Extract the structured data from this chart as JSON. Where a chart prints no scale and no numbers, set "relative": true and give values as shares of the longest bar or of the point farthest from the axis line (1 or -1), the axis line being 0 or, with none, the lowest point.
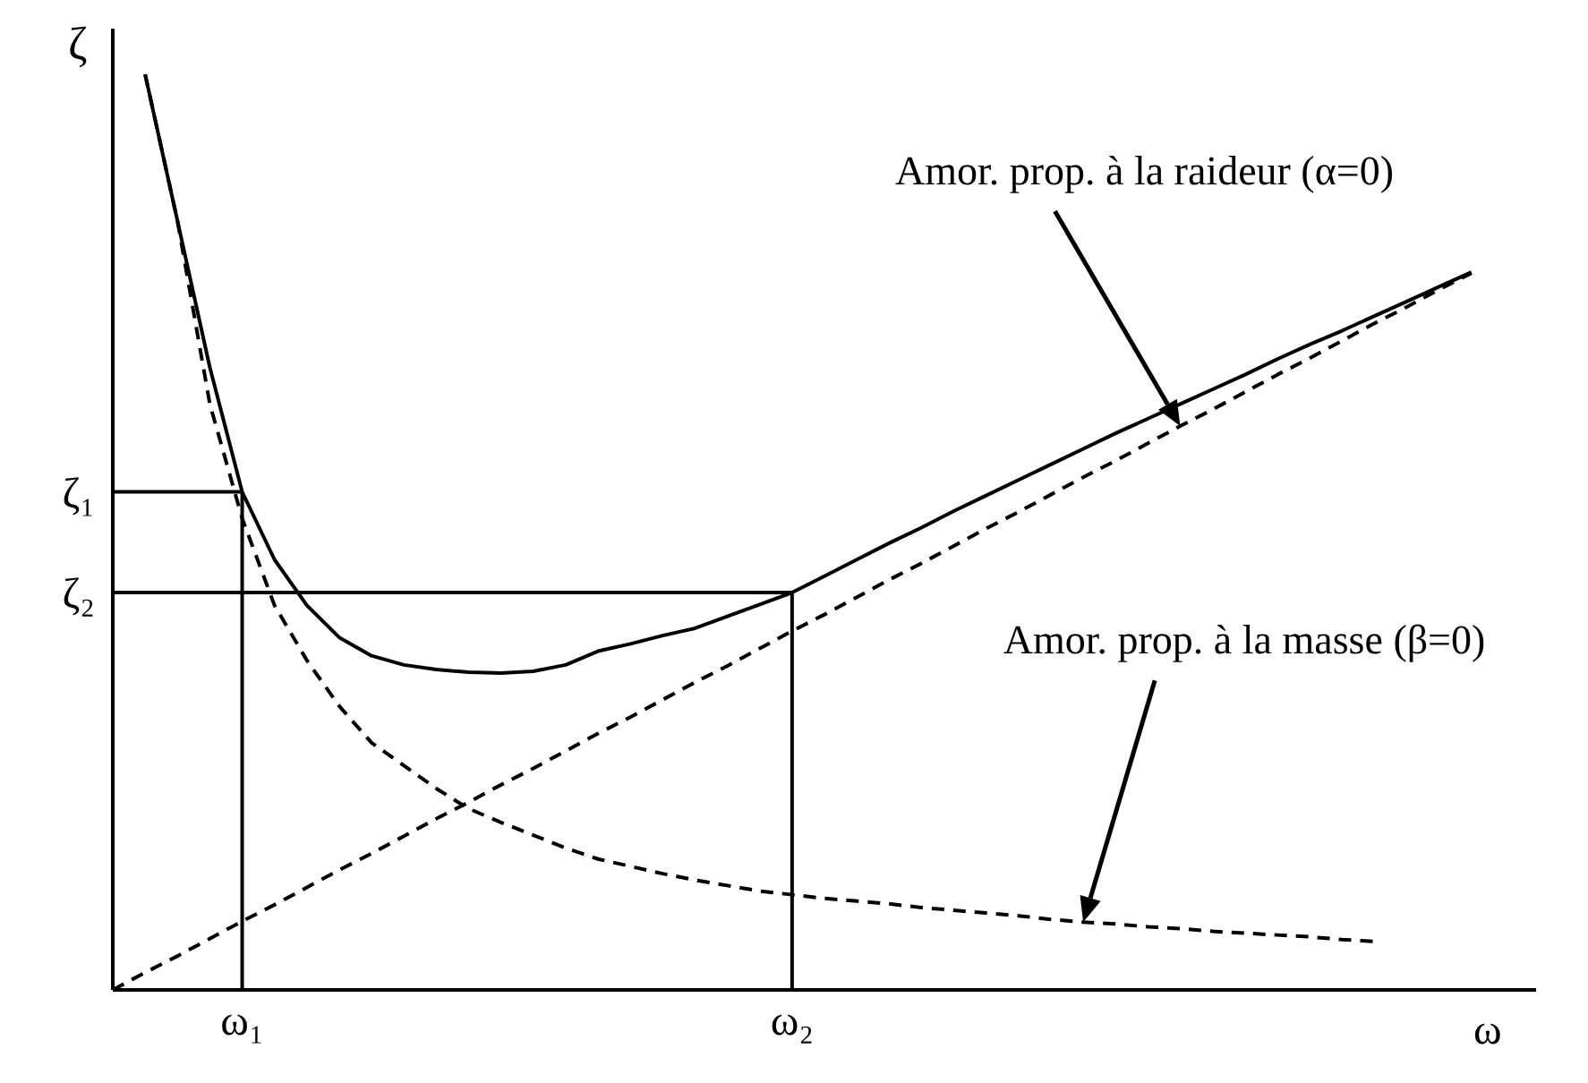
{
  "chart_data": {
    "type": "line",
    "relative": true,
    "xlabel": "ω",
    "ylabel": "ζ",
    "legend": false,
    "grid": false,
    "marker": "none",
    "categories": [
      null,
      null,
      null,
      null,
      "ω₁",
      null,
      null,
      null,
      null,
      null,
      null,
      null,
      null,
      null,
      null,
      null,
      null,
      null,
      null,
      null,
      null,
      "ω₂",
      null,
      null,
      null,
      null,
      null,
      null,
      null,
      null,
      null,
      null,
      null,
      null,
      null,
      null,
      null,
      null,
      null,
      null,
      null,
      null,
      null,
      null,
      null
    ],
    "series": [
      {
        "color": "#000000",
        "line_style": "solid",
        "values": [
          null,
          1.0,
          0.84,
          0.68,
          0.544,
          0.47,
          0.42,
          0.385,
          0.365,
          0.355,
          0.35,
          0.347,
          0.346,
          0.348,
          0.355,
          0.37,
          0.378,
          0.387,
          0.395,
          0.408,
          0.421,
          0.434,
          0.452,
          0.47,
          0.488,
          0.505,
          0.523,
          0.54,
          0.557,
          0.574,
          0.591,
          0.608,
          0.624,
          0.64,
          0.656,
          0.672,
          0.689,
          0.705,
          0.72,
          0.736,
          0.752,
          0.768,
          0.784,
          null,
          null
        ]
      },
      {
        "color": "#000000",
        "line_style": "dashed",
        "values": [
          null,
          1.0,
          0.84,
          0.64,
          0.515,
          0.42,
          0.36,
          0.31,
          0.27,
          0.245,
          0.22,
          0.198,
          0.183,
          0.169,
          0.155,
          0.143,
          0.135,
          0.127,
          0.12,
          0.114,
          0.108,
          0.104,
          0.1,
          0.097,
          0.094,
          0.09,
          0.087,
          0.084,
          0.081,
          0.077,
          0.074,
          0.072,
          0.069,
          0.067,
          0.064,
          0.062,
          0.06,
          0.058,
          0.055,
          0.053,
          null,
          null,
          null,
          null,
          null
        ]
      },
      {
        "color": "#000000",
        "line_style": "dashed",
        "values": [
          0,
          0.019,
          0.037,
          0.056,
          0.075,
          0.093,
          0.112,
          0.131,
          0.149,
          0.168,
          0.187,
          0.205,
          0.224,
          0.242,
          0.261,
          0.28,
          0.298,
          0.317,
          0.336,
          0.354,
          0.373,
          0.392,
          0.41,
          0.429,
          0.448,
          0.466,
          0.485,
          0.504,
          0.522,
          0.541,
          0.56,
          0.578,
          0.597,
          0.616,
          0.634,
          0.653,
          0.672,
          0.69,
          0.709,
          0.728,
          0.746,
          0.765,
          0.783,
          null,
          null
        ]
      }
    ],
    "ref_lines": [
      {
        "axis": "x",
        "value": "ω₁"
      },
      {
        "axis": "x",
        "value": "ω₂"
      },
      {
        "axis": "y",
        "value": 0.544,
        "label": "ζ₁"
      },
      {
        "axis": "y",
        "value": 0.434,
        "label": "ζ₂"
      }
    ],
    "annotations": [
      "Amor. prop. à la raideur (α=0)",
      "Amor. prop. à la masse (β=0)"
    ]
  }
}
